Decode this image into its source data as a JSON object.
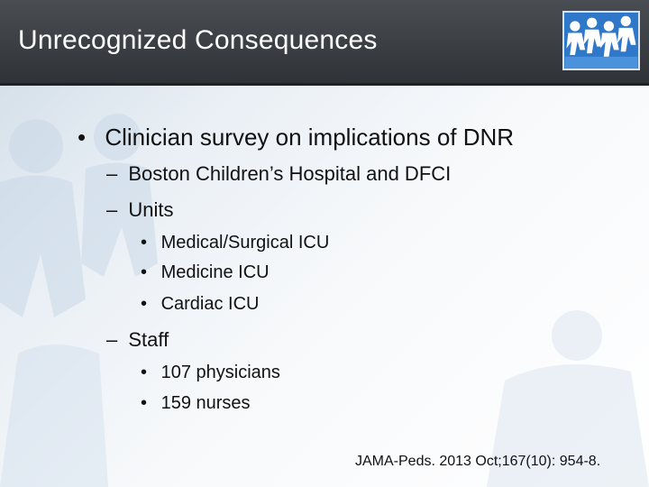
{
  "slide": {
    "title": "Unrecognized Consequences",
    "logo_icon": "people-chain-icon",
    "bullets": {
      "main": "Clinician survey on implications of DNR",
      "site": "Boston Children’s Hospital and DFCI",
      "units_heading": "Units",
      "units": [
        "Medical/Surgical ICU",
        "Medicine ICU",
        "Cardiac ICU"
      ],
      "staff_heading": "Staff",
      "staff": [
        "107 physicians",
        "159 nurses"
      ]
    },
    "markers": {
      "level1": "•",
      "level2": "–",
      "level3": "•"
    },
    "citation": "JAMA-Peds. 2013 Oct;167(10): 954-8."
  },
  "colors": {
    "title_bar": "#3b3f44",
    "title_text": "#ffffff",
    "body_text": "#111111",
    "accent_blue": "#2f78c9"
  }
}
